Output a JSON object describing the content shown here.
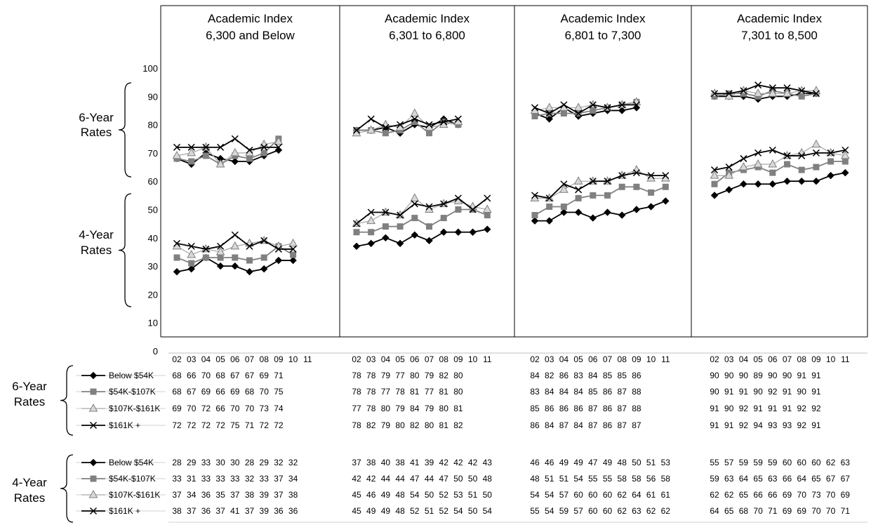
{
  "chart_data": {
    "type": "line",
    "y_axis": {
      "range": [
        0,
        100
      ],
      "ticks": [
        0,
        10,
        20,
        30,
        40,
        50,
        60,
        70,
        80,
        90,
        100
      ]
    },
    "x_categories": [
      "02",
      "03",
      "04",
      "05",
      "06",
      "07",
      "08",
      "09",
      "10",
      "11"
    ],
    "group_labels": {
      "six_year": [
        "6-Year",
        "Rates"
      ],
      "four_year": [
        "4-Year",
        "Rates"
      ]
    },
    "series_meta": [
      {
        "name": "Below $54K",
        "color": "#000000",
        "marker": "diamond"
      },
      {
        "name": "$54K-$107K",
        "color": "#808080",
        "marker": "square"
      },
      {
        "name": "$107K-$161K",
        "color": "#a6a6a6",
        "marker": "triangle"
      },
      {
        "name": "$161K +",
        "color": "#000000",
        "marker": "x"
      }
    ],
    "panels": [
      {
        "title": [
          "Academic Index",
          "6,300 and Below"
        ],
        "six_year": [
          [
            68,
            66,
            70,
            68,
            67,
            67,
            69,
            71
          ],
          [
            68,
            67,
            69,
            66,
            69,
            68,
            70,
            75
          ],
          [
            69,
            70,
            72,
            66,
            70,
            70,
            73,
            74
          ],
          [
            72,
            72,
            72,
            72,
            75,
            71,
            72,
            72
          ]
        ],
        "four_year": [
          [
            28,
            29,
            33,
            30,
            30,
            28,
            29,
            32,
            32
          ],
          [
            33,
            31,
            33,
            33,
            33,
            32,
            33,
            37,
            34
          ],
          [
            37,
            34,
            36,
            35,
            37,
            38,
            39,
            37,
            38
          ],
          [
            38,
            37,
            36,
            37,
            41,
            37,
            39,
            36,
            36
          ]
        ]
      },
      {
        "title": [
          "Academic Index",
          "6,301 to 6,800"
        ],
        "six_year": [
          [
            78,
            78,
            79,
            77,
            80,
            79,
            82,
            80
          ],
          [
            78,
            78,
            77,
            78,
            81,
            77,
            81,
            80
          ],
          [
            77,
            78,
            80,
            79,
            84,
            79,
            80,
            81
          ],
          [
            78,
            82,
            79,
            80,
            82,
            80,
            81,
            82
          ]
        ],
        "four_year": [
          [
            37,
            38,
            40,
            38,
            41,
            39,
            42,
            42,
            42,
            43
          ],
          [
            42,
            42,
            44,
            44,
            47,
            44,
            47,
            50,
            50,
            48
          ],
          [
            45,
            46,
            49,
            48,
            54,
            50,
            52,
            53,
            51,
            50
          ],
          [
            45,
            49,
            49,
            48,
            52,
            51,
            52,
            54,
            50,
            54
          ]
        ]
      },
      {
        "title": [
          "Academic Index",
          "6,801 to 7,300"
        ],
        "six_year": [
          [
            84,
            82,
            86,
            83,
            84,
            85,
            85,
            86
          ],
          [
            83,
            84,
            84,
            84,
            85,
            86,
            87,
            88
          ],
          [
            85,
            86,
            86,
            86,
            87,
            86,
            87,
            88
          ],
          [
            86,
            84,
            87,
            84,
            87,
            86,
            87,
            87
          ]
        ],
        "four_year": [
          [
            46,
            46,
            49,
            49,
            47,
            49,
            48,
            50,
            51,
            53
          ],
          [
            48,
            51,
            51,
            54,
            55,
            55,
            58,
            58,
            56,
            58
          ],
          [
            54,
            54,
            57,
            60,
            60,
            60,
            62,
            64,
            61,
            61
          ],
          [
            55,
            54,
            59,
            57,
            60,
            60,
            62,
            63,
            62,
            62
          ]
        ]
      },
      {
        "title": [
          "Academic Index",
          "7,301 to 8,500"
        ],
        "six_year": [
          [
            90,
            90,
            90,
            89,
            90,
            90,
            91,
            91
          ],
          [
            90,
            91,
            91,
            90,
            92,
            91,
            90,
            91
          ],
          [
            91,
            90,
            92,
            91,
            91,
            91,
            92,
            92
          ],
          [
            91,
            91,
            92,
            94,
            93,
            93,
            92,
            91
          ]
        ],
        "four_year": [
          [
            55,
            57,
            59,
            59,
            59,
            60,
            60,
            60,
            62,
            63
          ],
          [
            59,
            63,
            64,
            65,
            63,
            66,
            64,
            65,
            67,
            67
          ],
          [
            62,
            62,
            65,
            66,
            66,
            69,
            70,
            73,
            70,
            69
          ],
          [
            64,
            65,
            68,
            70,
            71,
            69,
            69,
            70,
            70,
            71
          ]
        ]
      }
    ]
  }
}
